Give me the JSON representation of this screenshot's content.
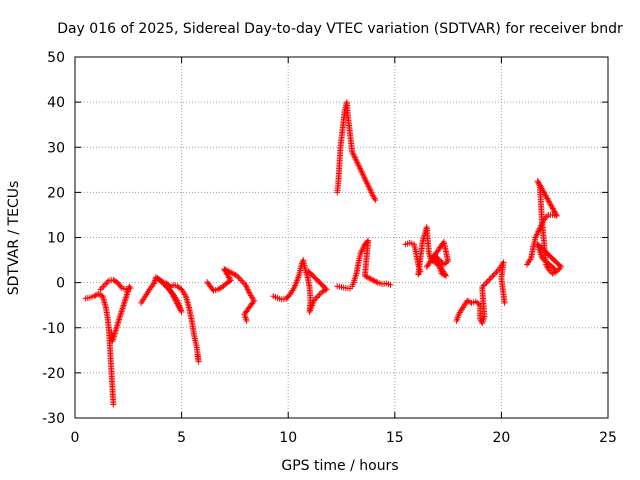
{
  "chart_data": {
    "type": "scatter",
    "title": "Day 016 of 2025, Sidereal Day-to-day VTEC variation (SDTVAR) for receiver bndr",
    "xlabel": "GPS time / hours",
    "ylabel": "SDTVAR / TECUs",
    "xlim": [
      0,
      25
    ],
    "ylim": [
      -30,
      50
    ],
    "xticks": [
      0,
      5,
      10,
      15,
      20,
      25
    ],
    "yticks": [
      -30,
      -20,
      -10,
      0,
      10,
      20,
      30,
      40,
      50
    ],
    "grid": true,
    "marker": "+",
    "series_color": "#ff0000",
    "segments": [
      {
        "name": "seg-1",
        "points": [
          [
            0.5,
            -3.5
          ],
          [
            0.7,
            -3.3
          ],
          [
            0.9,
            -3.0
          ],
          [
            1.1,
            -2.5
          ],
          [
            1.3,
            -3.0
          ],
          [
            1.45,
            -5.5
          ],
          [
            1.55,
            -8.5
          ],
          [
            1.6,
            -11
          ],
          [
            1.65,
            -15
          ],
          [
            1.7,
            -19
          ],
          [
            1.75,
            -23
          ],
          [
            1.8,
            -27
          ]
        ]
      },
      {
        "name": "seg-2",
        "points": [
          [
            1.2,
            -1.5
          ],
          [
            1.4,
            -0.5
          ],
          [
            1.6,
            0.5
          ],
          [
            1.8,
            0.6
          ],
          [
            2.0,
            0.0
          ],
          [
            2.2,
            -1.2
          ],
          [
            2.4,
            -1.5
          ],
          [
            2.6,
            -1.2
          ],
          [
            2.55,
            -0.9
          ],
          [
            1.75,
            -13
          ],
          [
            1.7,
            -11
          ]
        ]
      },
      {
        "name": "seg-3",
        "points": [
          [
            3.1,
            -4.5
          ],
          [
            3.3,
            -3.0
          ],
          [
            3.5,
            -1.5
          ],
          [
            3.7,
            -0.2
          ],
          [
            3.8,
            1.2
          ],
          [
            4.0,
            0.5
          ],
          [
            4.2,
            -0.5
          ],
          [
            4.4,
            -1.5
          ],
          [
            4.6,
            -2.5
          ],
          [
            4.8,
            -4.0
          ],
          [
            5.0,
            -6.5
          ],
          [
            4.3,
            -0.2
          ],
          [
            4.5,
            -1.0
          ],
          [
            3.9,
            0.8
          ]
        ]
      },
      {
        "name": "seg-4",
        "points": [
          [
            4.6,
            -0.5
          ],
          [
            4.8,
            -0.8
          ],
          [
            5.0,
            -1.5
          ],
          [
            5.2,
            -3.0
          ],
          [
            5.35,
            -5.5
          ],
          [
            5.5,
            -9.0
          ],
          [
            5.6,
            -12
          ],
          [
            5.7,
            -14
          ],
          [
            5.8,
            -17.5
          ],
          [
            5.75,
            -16
          ]
        ]
      },
      {
        "name": "seg-5",
        "points": [
          [
            6.2,
            0.1
          ],
          [
            6.5,
            -1.8
          ],
          [
            6.7,
            -1.5
          ],
          [
            6.9,
            -1.0
          ],
          [
            7.1,
            -0.2
          ],
          [
            7.3,
            0.5
          ],
          [
            7.0,
            3.0
          ],
          [
            7.2,
            2.5
          ],
          [
            7.4,
            2.0
          ],
          [
            7.6,
            1.5
          ],
          [
            7.8,
            0.5
          ],
          [
            8.0,
            -0.5
          ],
          [
            8.2,
            -2.5
          ],
          [
            8.4,
            -4.0
          ],
          [
            7.95,
            -7.0
          ],
          [
            8.05,
            -8.5
          ]
        ]
      },
      {
        "name": "seg-6",
        "points": [
          [
            9.3,
            -3.0
          ],
          [
            9.5,
            -3.4
          ],
          [
            9.7,
            -3.7
          ],
          [
            9.9,
            -3.6
          ],
          [
            10.1,
            -2.5
          ],
          [
            10.3,
            -1.0
          ],
          [
            10.5,
            1.5
          ],
          [
            10.6,
            3.5
          ],
          [
            10.7,
            5.0
          ],
          [
            10.8,
            3.0
          ],
          [
            10.9,
            1.5
          ],
          [
            11.0,
            -1.0
          ],
          [
            11.05,
            -4.0
          ],
          [
            11.0,
            -6.5
          ],
          [
            11.2,
            -4.0
          ],
          [
            11.4,
            -3.0
          ],
          [
            11.6,
            -2.0
          ],
          [
            11.8,
            -1.5
          ],
          [
            10.95,
            2.5
          ]
        ]
      },
      {
        "name": "seg-7",
        "points": [
          [
            12.3,
            20.0
          ],
          [
            12.35,
            22
          ],
          [
            12.4,
            26
          ],
          [
            12.45,
            30
          ],
          [
            12.55,
            34
          ],
          [
            12.65,
            38
          ],
          [
            12.75,
            40
          ],
          [
            12.8,
            37
          ],
          [
            12.9,
            33
          ],
          [
            13.0,
            29
          ],
          [
            13.2,
            27
          ],
          [
            13.4,
            25
          ],
          [
            13.6,
            23
          ],
          [
            13.8,
            21
          ],
          [
            14.0,
            19
          ],
          [
            14.1,
            18.3
          ]
        ]
      },
      {
        "name": "seg-8",
        "points": [
          [
            12.3,
            -0.8
          ],
          [
            12.5,
            -1.0
          ],
          [
            12.7,
            -1.2
          ],
          [
            12.9,
            -1.3
          ],
          [
            13.0,
            -0.8
          ],
          [
            13.1,
            0.5
          ],
          [
            13.2,
            2.0
          ],
          [
            13.3,
            4.5
          ],
          [
            13.4,
            6.5
          ],
          [
            13.5,
            7.5
          ],
          [
            13.6,
            8.5
          ],
          [
            13.75,
            9.3
          ],
          [
            13.6,
            1.5
          ],
          [
            13.8,
            1.0
          ],
          [
            14.0,
            0.5
          ],
          [
            14.2,
            0.0
          ],
          [
            14.4,
            -0.3
          ],
          [
            14.6,
            -0.2
          ],
          [
            14.8,
            -0.5
          ]
        ]
      },
      {
        "name": "seg-9",
        "points": [
          [
            15.5,
            8.5
          ],
          [
            15.7,
            8.8
          ],
          [
            15.9,
            8.5
          ],
          [
            16.0,
            6.5
          ],
          [
            16.1,
            4.0
          ],
          [
            16.2,
            2.5
          ],
          [
            16.1,
            1.8
          ],
          [
            16.3,
            9.0
          ],
          [
            16.5,
            12.3
          ],
          [
            16.6,
            6.5
          ],
          [
            16.7,
            5.0
          ],
          [
            16.9,
            4.5
          ],
          [
            17.1,
            3.5
          ],
          [
            17.2,
            2.0
          ],
          [
            17.4,
            1.5
          ],
          [
            16.8,
            6.0
          ],
          [
            17.0,
            5.5
          ],
          [
            17.3,
            4.0
          ],
          [
            17.5,
            4.8
          ],
          [
            17.3,
            9.0
          ],
          [
            16.5,
            3.5
          ]
        ]
      },
      {
        "name": "seg-10",
        "points": [
          [
            17.9,
            -8.5
          ],
          [
            18.0,
            -7.0
          ],
          [
            18.2,
            -5.5
          ],
          [
            18.4,
            -4.0
          ],
          [
            18.6,
            -4.5
          ],
          [
            18.8,
            -4.2
          ],
          [
            19.0,
            -5.0
          ],
          [
            19.0,
            -8.0
          ],
          [
            19.1,
            -9.0
          ],
          [
            19.2,
            -7.5
          ],
          [
            19.1,
            -1.0
          ],
          [
            19.3,
            0.0
          ],
          [
            19.5,
            1.0
          ],
          [
            19.7,
            2.0
          ],
          [
            19.9,
            3.0
          ],
          [
            20.1,
            4.5
          ],
          [
            20.0,
            1.0
          ],
          [
            20.15,
            -4.5
          ]
        ]
      },
      {
        "name": "seg-11",
        "points": [
          [
            21.2,
            4.0
          ],
          [
            21.4,
            5.5
          ],
          [
            21.5,
            8.0
          ],
          [
            21.6,
            10.0
          ],
          [
            21.7,
            11.0
          ],
          [
            21.8,
            12.0
          ],
          [
            21.9,
            13.0
          ],
          [
            22.0,
            14.0
          ],
          [
            22.2,
            15.0
          ],
          [
            22.4,
            15.0
          ],
          [
            22.6,
            14.8
          ],
          [
            21.7,
            22.5
          ],
          [
            21.8,
            21.5
          ],
          [
            21.85,
            18.0
          ],
          [
            21.9,
            14.0
          ],
          [
            22.0,
            9.0
          ],
          [
            22.05,
            6.0
          ],
          [
            22.1,
            4.0
          ],
          [
            22.2,
            3.0
          ],
          [
            22.4,
            2.0
          ],
          [
            22.6,
            2.5
          ],
          [
            22.8,
            3.5
          ],
          [
            21.7,
            8.5
          ],
          [
            21.8,
            7.0
          ],
          [
            21.9,
            5.5
          ],
          [
            22.5,
            3.0
          ]
        ]
      }
    ]
  }
}
